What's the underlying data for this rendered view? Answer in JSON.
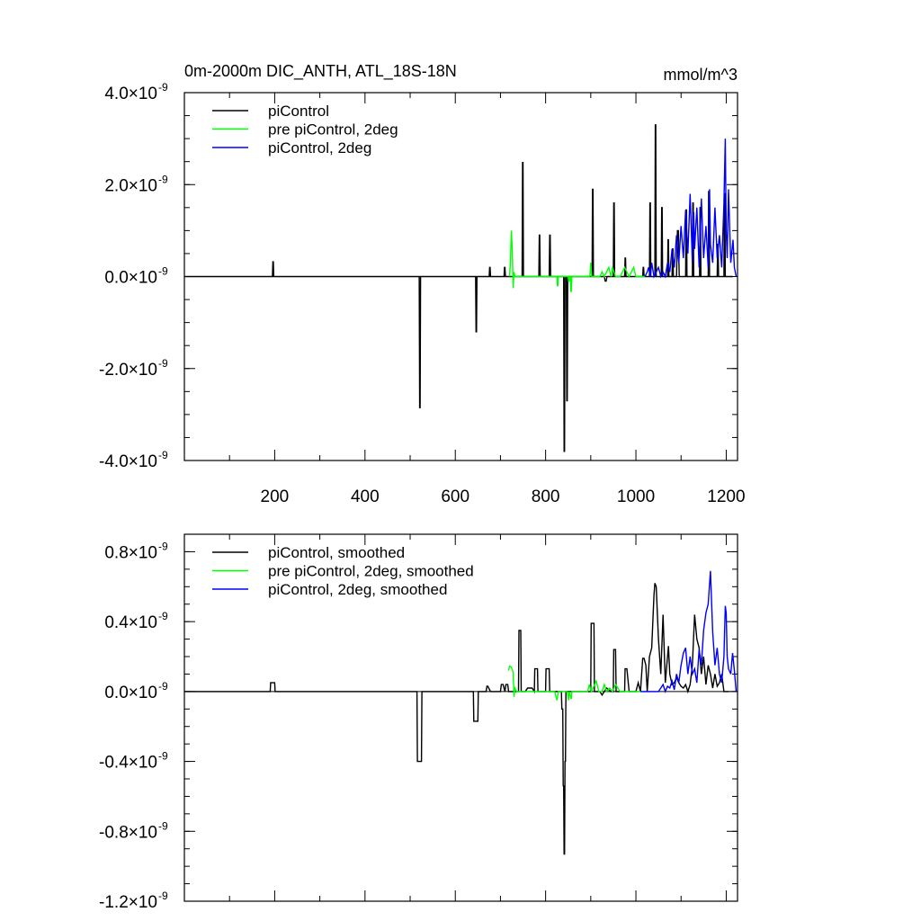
{
  "chart_data": [
    {
      "type": "line",
      "title": "0m-2000m DIC_ANTH, ATL_18S-18N",
      "units": "mmol/m^3",
      "xlim": [
        0,
        1225
      ],
      "ylim": [
        -4e-09,
        4e-09
      ],
      "x_ticks": [
        200,
        400,
        600,
        800,
        1000,
        1200
      ],
      "x_tick_labels": [
        "200",
        "400",
        "600",
        "800",
        "1000",
        "1200"
      ],
      "y_ticks": [
        4e-09,
        2e-09,
        0.0,
        -2e-09,
        -4e-09
      ],
      "y_tick_labels": [
        {
          "mant": "4.0",
          "exp": "-9"
        },
        {
          "mant": "2.0",
          "exp": "-9"
        },
        {
          "mant": "0.0",
          "exp": "-9"
        },
        {
          "mant": "-2.0",
          "exp": "-9"
        },
        {
          "mant": "-4.0",
          "exp": "-9"
        }
      ],
      "times_sign": "×10",
      "legend_position": "top-left",
      "series": [
        {
          "name": "piControl",
          "color": "#000000",
          "x": [
            0,
            195,
            196,
            197,
            198,
            520,
            521,
            522,
            523,
            645,
            646,
            647,
            648,
            675,
            676,
            677,
            678,
            708,
            709,
            710,
            711,
            748,
            749,
            750,
            751,
            785,
            786,
            787,
            788,
            808,
            809,
            810,
            811,
            840,
            841,
            842,
            843,
            846,
            847,
            848,
            849,
            903,
            904,
            905,
            906,
            930,
            932,
            934,
            936,
            950,
            951,
            952,
            953,
            975,
            976,
            977,
            978,
            1015,
            1016,
            1017,
            1018,
            1030,
            1031,
            1032,
            1033,
            1042,
            1043,
            1044,
            1045,
            1056,
            1057,
            1058,
            1059,
            1070,
            1071,
            1072,
            1073,
            1080,
            1081,
            1082,
            1083,
            1090,
            1092,
            1094,
            1096,
            1110,
            1111,
            1112,
            1113,
            1125,
            1126,
            1127,
            1128,
            1141,
            1142,
            1143,
            1144,
            1160,
            1161,
            1162,
            1163,
            1180,
            1181,
            1182,
            1183,
            1195,
            1196,
            1197,
            1198,
            1215
          ],
          "y": [
            0,
            0,
            3.2e-10,
            3.2e-10,
            0,
            0,
            -2.85e-09,
            -2.85e-09,
            0,
            0,
            -1.2e-09,
            -1.2e-09,
            0,
            0,
            2e-10,
            2e-10,
            0,
            0,
            2e-10,
            2e-10,
            0,
            0,
            2.48e-09,
            2.48e-09,
            0,
            0,
            9e-10,
            9e-10,
            0,
            0,
            9e-10,
            9e-10,
            0,
            0,
            -3.8e-09,
            -3.8e-09,
            0,
            0,
            -2.7e-09,
            -2.7e-09,
            0,
            0,
            1.9e-09,
            1.9e-09,
            0,
            0,
            -1e-10,
            -1e-10,
            0,
            0,
            1.6e-09,
            1.6e-09,
            0,
            0,
            4e-10,
            4e-10,
            0,
            0,
            2e-10,
            2e-10,
            0,
            0,
            1.6e-09,
            1.6e-09,
            0,
            0,
            3.3e-09,
            3.3e-09,
            0,
            0,
            1.5e-09,
            1.5e-09,
            0,
            0,
            8e-10,
            8e-10,
            0,
            0,
            6e-10,
            6e-10,
            0,
            0,
            1e-09,
            1e-09,
            0,
            0,
            1.45e-09,
            1.45e-09,
            0,
            0,
            1.6e-09,
            1.6e-09,
            0,
            0,
            1.5e-09,
            1.5e-09,
            0,
            0,
            1.85e-09,
            1.85e-09,
            0,
            0,
            7e-10,
            7e-10,
            0,
            0,
            1.8e-09,
            1.8e-09,
            0,
            0
          ]
        },
        {
          "name": "pre piControl, 2deg",
          "color": "#00ff00",
          "x": [
            720,
            722,
            724,
            726,
            728,
            730,
            732,
            735,
            740,
            750,
            760,
            770,
            780,
            790,
            800,
            810,
            820,
            825,
            826,
            827,
            828,
            840,
            850,
            851,
            852,
            853,
            855,
            856,
            857,
            858,
            870,
            880,
            890,
            898,
            900,
            902,
            910,
            920,
            925,
            930,
            940,
            945,
            948,
            955,
            965,
            975,
            985,
            995,
            1000,
            1010,
            1020
          ],
          "y": [
            0,
            3e-10,
            1e-09,
            6e-10,
            -2.5e-10,
            1e-10,
            0,
            0,
            0,
            0,
            0,
            0,
            0,
            0,
            0,
            0,
            0,
            0,
            -2e-10,
            -2e-10,
            0,
            0,
            0,
            -1e-10,
            -1e-10,
            0,
            0,
            -3.2e-10,
            -3.2e-10,
            0,
            0,
            0,
            0,
            0,
            3e-10,
            0,
            0,
            0,
            1e-10,
            0,
            2e-10,
            0,
            2e-10,
            0,
            0,
            2e-10,
            0,
            2e-10,
            0,
            0,
            0
          ]
        },
        {
          "name": "piControl, 2deg",
          "color": "#0000ff",
          "x": [
            1020,
            1025,
            1028,
            1032,
            1035,
            1040,
            1045,
            1050,
            1055,
            1060,
            1065,
            1070,
            1075,
            1080,
            1085,
            1090,
            1095,
            1100,
            1105,
            1110,
            1115,
            1120,
            1125,
            1128,
            1130,
            1135,
            1140,
            1145,
            1150,
            1155,
            1160,
            1163,
            1165,
            1170,
            1175,
            1180,
            1185,
            1190,
            1195,
            1198,
            1200,
            1202,
            1205,
            1210,
            1215,
            1218,
            1222
          ],
          "y": [
            0,
            1e-10,
            2e-10,
            0,
            3e-10,
            0,
            1e-10,
            2e-10,
            0,
            1e-10,
            0,
            3e-10,
            1e-10,
            6e-10,
            2e-10,
            9e-10,
            3e-10,
            1.1e-09,
            4e-10,
            1.45e-09,
            5e-10,
            1.8e-09,
            3e-10,
            1.4e-09,
            6e-10,
            1.5e-09,
            2e-10,
            1.7e-09,
            4e-10,
            1.1e-09,
            2e-10,
            1.9e-09,
            7e-10,
            3e-10,
            1.5e-09,
            4e-10,
            9e-10,
            2e-10,
            1.6e-09,
            3e-09,
            1e-09,
            4e-10,
            1.9e-09,
            3e-10,
            8e-10,
            2e-10,
            0
          ]
        }
      ]
    },
    {
      "type": "line",
      "xlim": [
        0,
        1225
      ],
      "ylim": [
        -1.2e-09,
        9e-10
      ],
      "x_ticks": [
        200,
        400,
        600,
        800,
        1000,
        1200
      ],
      "y_ticks": [
        8e-10,
        4e-10,
        0.0,
        -4e-10,
        -8e-10,
        -1.2e-09
      ],
      "y_tick_labels": [
        {
          "mant": "0.8",
          "exp": "-9"
        },
        {
          "mant": "0.4",
          "exp": "-9"
        },
        {
          "mant": "0.0",
          "exp": "-9"
        },
        {
          "mant": "-0.4",
          "exp": "-9"
        },
        {
          "mant": "-0.8",
          "exp": "-9"
        },
        {
          "mant": "-1.2",
          "exp": "-9"
        }
      ],
      "times_sign": "×10",
      "legend_position": "top-left",
      "series": [
        {
          "name": "piControl, smoothed",
          "color": "#000000",
          "x": [
            0,
            190,
            191,
            200,
            201,
            515,
            516,
            525,
            526,
            640,
            641,
            650,
            651,
            668,
            670,
            672,
            678,
            690,
            700,
            702,
            706,
            710,
            712,
            716,
            718,
            725,
            740,
            741,
            745,
            746,
            755,
            760,
            770,
            775,
            776,
            782,
            783,
            790,
            800,
            801,
            808,
            809,
            820,
            835,
            836,
            838,
            839,
            840,
            841,
            842,
            843,
            844,
            845,
            848,
            850,
            860,
            890,
            900,
            901,
            907,
            908,
            920,
            925,
            930,
            935,
            945,
            950,
            951,
            955,
            956,
            965,
            975,
            976,
            980,
            985,
            990,
            1000,
            1005,
            1010,
            1015,
            1018,
            1022,
            1025,
            1030,
            1035,
            1040,
            1042,
            1045,
            1050,
            1055,
            1060,
            1065,
            1070,
            1072,
            1075,
            1080,
            1085,
            1090,
            1095,
            1100,
            1105,
            1110,
            1115,
            1120,
            1125,
            1130,
            1135,
            1140,
            1145,
            1150,
            1155,
            1160,
            1165,
            1170,
            1175,
            1180,
            1185,
            1190,
            1195,
            1200,
            1205
          ],
          "y": [
            0,
            0,
            5e-11,
            5e-11,
            0,
            0,
            -4e-10,
            -4e-10,
            0,
            0,
            -1.7e-10,
            -1.7e-10,
            0,
            0,
            3e-11,
            3e-11,
            0,
            0,
            0,
            4e-11,
            4e-11,
            0,
            4e-11,
            4e-11,
            0,
            0,
            0,
            3.5e-10,
            3.5e-10,
            0,
            0,
            2e-11,
            2e-11,
            0,
            1.3e-10,
            1.3e-10,
            0,
            0,
            0,
            1.3e-10,
            1.3e-10,
            0,
            0,
            0,
            -1e-10,
            -1e-10,
            -5.4e-10,
            -5.4e-10,
            -9.3e-10,
            -9.3e-10,
            -4e-10,
            -4e-10,
            0,
            0,
            0,
            0,
            0,
            0,
            3.9e-10,
            3.9e-10,
            0,
            0,
            -2e-11,
            0,
            2e-11,
            0,
            0,
            2.4e-10,
            2.4e-10,
            0,
            0,
            0,
            1.3e-10,
            1.3e-10,
            0,
            0,
            0,
            5e-11,
            0,
            1.9e-10,
            1.9e-10,
            1.5e-10,
            0,
            2e-10,
            2.5e-10,
            5.5e-10,
            6.2e-10,
            6e-10,
            3e-10,
            1e-10,
            4.4e-10,
            5e-11,
            2e-10,
            2.6e-10,
            1e-10,
            4e-11,
            5e-11,
            8e-11,
            5e-11,
            3e-11,
            2e-11,
            4e-11,
            0,
            4e-11,
            1.5e-10,
            4.4e-10,
            3e-10,
            2.5e-10,
            1e-10,
            2e-10,
            4e-11,
            1.5e-10,
            1e-10,
            2e-11,
            1e-10,
            3e-11,
            5e-11,
            1e-10,
            0,
            0,
            0
          ]
        },
        {
          "name": "pre piControl, 2deg, smoothed",
          "color": "#00ff00",
          "x": [
            718,
            720,
            724,
            728,
            730,
            732,
            736,
            740,
            760,
            790,
            820,
            825,
            828,
            835,
            840,
            845,
            848,
            851,
            852,
            856,
            857,
            858,
            860,
            870,
            885,
            893,
            897,
            901,
            905,
            912,
            918,
            925,
            930,
            935,
            942,
            948,
            955,
            965,
            975,
            985,
            995,
            1005,
            1010
          ],
          "y": [
            1.2e-10,
            1.45e-10,
            1.4e-10,
            1.1e-10,
            -3e-11,
            2e-11,
            0,
            0,
            0,
            0,
            0,
            -5e-11,
            0,
            0,
            0,
            0,
            0,
            -5e-11,
            0,
            -4e-11,
            -4e-11,
            0,
            0,
            0,
            0,
            0,
            4e-11,
            0,
            2e-11,
            6e-11,
            0,
            0,
            4e-11,
            0,
            2e-11,
            0,
            4e-11,
            0,
            0,
            0,
            0,
            0,
            0
          ]
        },
        {
          "name": "piControl, 2deg, smoothed",
          "color": "#0000ff",
          "x": [
            1010,
            1020,
            1030,
            1040,
            1050,
            1055,
            1060,
            1065,
            1070,
            1075,
            1080,
            1085,
            1090,
            1095,
            1100,
            1105,
            1110,
            1115,
            1120,
            1125,
            1130,
            1135,
            1140,
            1145,
            1150,
            1155,
            1160,
            1165,
            1170,
            1175,
            1180,
            1185,
            1190,
            1195,
            1198,
            1200,
            1202,
            1205,
            1210,
            1214,
            1218,
            1222
          ],
          "y": [
            0,
            0,
            0,
            0,
            0,
            2e-11,
            4e-11,
            0,
            3e-11,
            2e-11,
            6e-11,
            1e-11,
            1e-10,
            5e-11,
            1.5e-10,
            2.2e-10,
            2.5e-10,
            1e-10,
            2e-10,
            1e-10,
            1.3e-10,
            5e-11,
            2.4e-10,
            1.5e-10,
            3.5e-10,
            4.5e-10,
            5e-10,
            6.9e-10,
            3.4e-10,
            1.5e-10,
            2.5e-10,
            1e-10,
            5e-11,
            2e-10,
            4.9e-10,
            4.5e-10,
            2e-10,
            1.3e-10,
            1e-10,
            2.2e-10,
            1.2e-10,
            0
          ]
        }
      ]
    }
  ]
}
